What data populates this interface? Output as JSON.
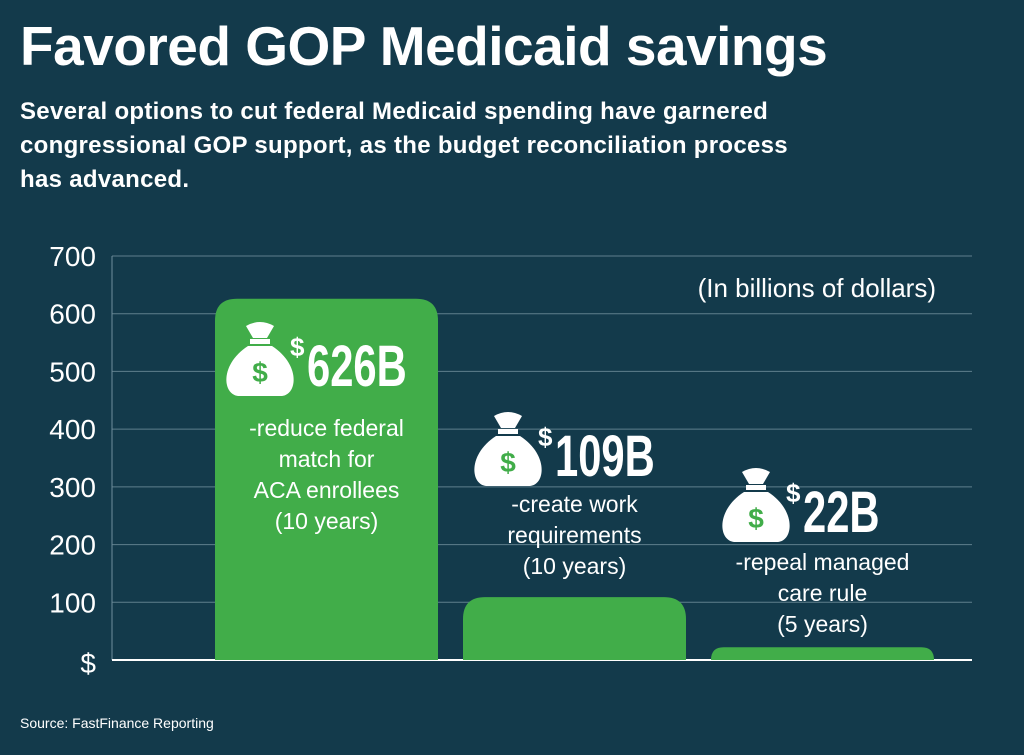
{
  "title": "Favored GOP Medicaid savings",
  "subtitle": "Several options to cut federal Medicaid spending have garnered congressional GOP support, as the budget reconciliation process has advanced.",
  "source": "Source: FastFinance Reporting",
  "chart_data": {
    "type": "bar",
    "title": "Favored GOP Medicaid savings",
    "unit_note": "(In billions of dollars)",
    "ylim": [
      0,
      700
    ],
    "yticks": [
      0,
      100,
      200,
      300,
      400,
      500,
      600,
      700
    ],
    "ytick_labels": [
      "$",
      "100",
      "200",
      "300",
      "400",
      "500",
      "600",
      "700"
    ],
    "grid": true,
    "bar_color": "#41ad49",
    "categories": [
      "reduce federal match for ACA enrollees (10 years)",
      "create work requirements (10 years)",
      "repeal managed care rule (5 years)"
    ],
    "values": [
      626,
      109,
      22
    ],
    "value_labels": [
      "626B",
      "109B",
      "22B"
    ],
    "label_lines": [
      [
        "-reduce federal",
        "match for",
        "ACA enrollees",
        "(10 years)"
      ],
      [
        "-create work",
        "requirements",
        "(10 years)"
      ],
      [
        "-repeal managed",
        "care rule",
        "(5 years)"
      ]
    ],
    "icon": "money-bag-icon"
  }
}
